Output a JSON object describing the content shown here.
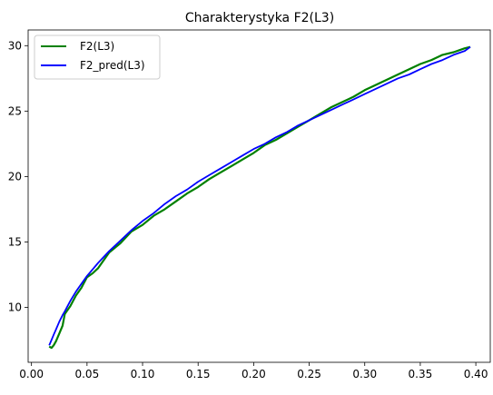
{
  "chart_data": {
    "type": "line",
    "title": "Charakterystyka F2(L3)",
    "xlabel": "",
    "ylabel": "",
    "xlim": [
      -0.003,
      0.413
    ],
    "ylim": [
      5.8,
      31.2
    ],
    "xticks": [
      0.0,
      0.05,
      0.1,
      0.15,
      0.2,
      0.25,
      0.3,
      0.35,
      0.4
    ],
    "xtick_labels": [
      "0.00",
      "0.05",
      "0.10",
      "0.15",
      "0.20",
      "0.25",
      "0.30",
      "0.35",
      "0.40"
    ],
    "yticks": [
      10,
      15,
      20,
      25,
      30
    ],
    "ytick_labels": [
      "10",
      "15",
      "20",
      "25",
      "30"
    ],
    "grid": false,
    "legend_position": "top-left",
    "series": [
      {
        "name": "F2(L3)",
        "color": "#008000",
        "x": [
          0.016,
          0.018,
          0.02,
          0.022,
          0.025,
          0.028,
          0.03,
          0.035,
          0.04,
          0.045,
          0.05,
          0.055,
          0.06,
          0.07,
          0.08,
          0.09,
          0.1,
          0.11,
          0.12,
          0.13,
          0.14,
          0.15,
          0.16,
          0.17,
          0.18,
          0.19,
          0.2,
          0.21,
          0.22,
          0.23,
          0.24,
          0.25,
          0.26,
          0.27,
          0.28,
          0.29,
          0.3,
          0.31,
          0.32,
          0.33,
          0.34,
          0.35,
          0.36,
          0.37,
          0.38,
          0.39,
          0.395
        ],
        "y": [
          7.0,
          6.9,
          7.1,
          7.4,
          8.0,
          8.6,
          9.5,
          10.1,
          10.9,
          11.5,
          12.3,
          12.6,
          13.0,
          14.2,
          14.9,
          15.8,
          16.3,
          17.0,
          17.5,
          18.1,
          18.7,
          19.2,
          19.8,
          20.3,
          20.8,
          21.3,
          21.8,
          22.4,
          22.8,
          23.3,
          23.8,
          24.3,
          24.8,
          25.3,
          25.7,
          26.1,
          26.6,
          27.0,
          27.4,
          27.8,
          28.2,
          28.6,
          28.9,
          29.3,
          29.5,
          29.8,
          29.9
        ]
      },
      {
        "name": "F2_pred(L3)",
        "color": "#0000ff",
        "x": [
          0.016,
          0.018,
          0.02,
          0.022,
          0.025,
          0.028,
          0.03,
          0.035,
          0.04,
          0.045,
          0.05,
          0.055,
          0.06,
          0.07,
          0.08,
          0.09,
          0.1,
          0.11,
          0.12,
          0.13,
          0.14,
          0.15,
          0.16,
          0.17,
          0.18,
          0.19,
          0.2,
          0.21,
          0.22,
          0.23,
          0.24,
          0.25,
          0.26,
          0.27,
          0.28,
          0.29,
          0.3,
          0.31,
          0.32,
          0.33,
          0.34,
          0.35,
          0.36,
          0.37,
          0.38,
          0.39,
          0.395
        ],
        "y": [
          7.1,
          7.5,
          7.9,
          8.3,
          8.9,
          9.4,
          9.7,
          10.5,
          11.2,
          11.8,
          12.4,
          12.9,
          13.4,
          14.3,
          15.1,
          15.9,
          16.6,
          17.2,
          17.9,
          18.5,
          19.0,
          19.6,
          20.1,
          20.6,
          21.1,
          21.6,
          22.1,
          22.5,
          23.0,
          23.4,
          23.9,
          24.3,
          24.7,
          25.1,
          25.5,
          25.9,
          26.3,
          26.7,
          27.1,
          27.5,
          27.8,
          28.2,
          28.6,
          28.9,
          29.3,
          29.6,
          29.9
        ]
      }
    ]
  }
}
